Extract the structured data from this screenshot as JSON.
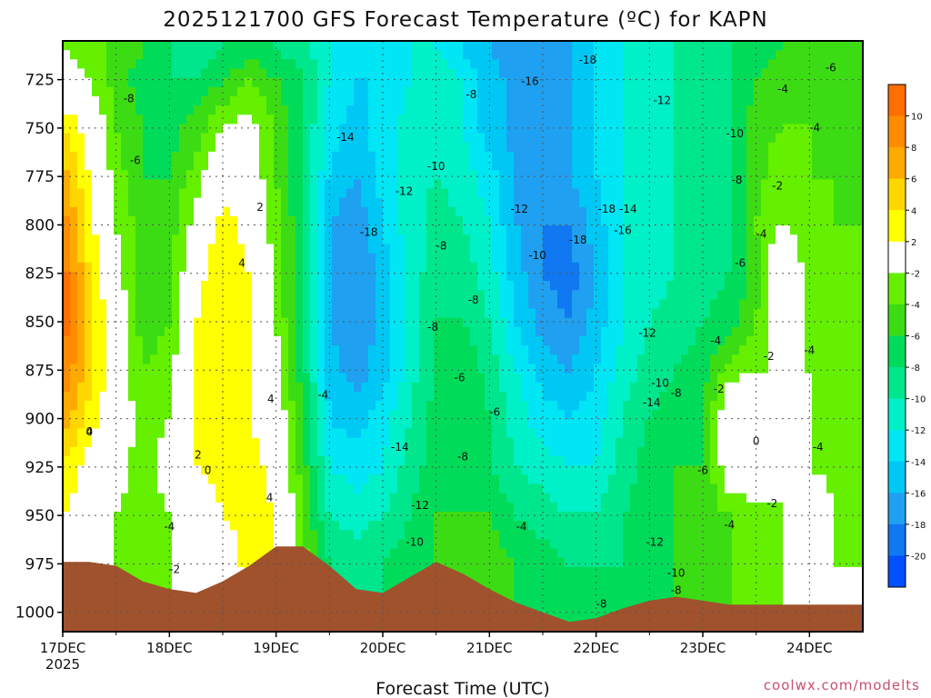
{
  "chart_data": {
    "type": "heatmap",
    "title": "2025121700 GFS Forecast Temperature (ºC) for KAPN",
    "xlabel": "Forecast Time (UTC)",
    "ylabel": "",
    "credit": "coolwx.com/modelts",
    "x_ticks": [
      "17DEC",
      "18DEC",
      "19DEC",
      "20DEC",
      "21DEC",
      "22DEC",
      "23DEC",
      "24DEC"
    ],
    "x_year": "2025",
    "xlim_days": [
      0,
      7.5
    ],
    "y_ticks": [
      725,
      750,
      775,
      800,
      825,
      850,
      875,
      900,
      925,
      950,
      975,
      1000
    ],
    "ylim": [
      705,
      1010
    ],
    "y_axis": "pressure (hPa), inverted",
    "grid": true,
    "colorbar": {
      "boundaries": [
        -22,
        -20,
        -18,
        -16,
        -14,
        -12,
        -10,
        -8,
        -6,
        -4,
        -2,
        2,
        4,
        6,
        8,
        10,
        12
      ],
      "labels": [
        -20,
        -18,
        -16,
        -14,
        -12,
        -10,
        -8,
        -6,
        -4,
        -2,
        2,
        4,
        6,
        8,
        10
      ],
      "colors": [
        "#0050ff",
        "#1078f0",
        "#20a0f0",
        "#00c8f5",
        "#00e6f5",
        "#00f0c8",
        "#00e68c",
        "#00dc5a",
        "#3cdc14",
        "#64f000",
        "#ffffff",
        "#ffff00",
        "#ffd700",
        "#ffaa00",
        "#ff8c00",
        "#ff6e00"
      ]
    },
    "times_days": [
      0,
      0.25,
      0.5,
      0.75,
      1,
      1.25,
      1.5,
      1.75,
      2,
      2.25,
      2.5,
      2.75,
      3,
      3.25,
      3.5,
      3.75,
      4,
      4.25,
      4.5,
      4.75,
      5,
      5.25,
      5.5,
      5.75,
      6,
      6.25,
      6.5,
      6.75,
      7,
      7.25,
      7.5
    ],
    "levels_hpa": [
      710,
      725,
      750,
      775,
      800,
      825,
      850,
      875,
      900,
      925,
      950,
      975,
      1000
    ],
    "surface_pressure_hpa": [
      974,
      974,
      976,
      984,
      988,
      990,
      984,
      976,
      966,
      966,
      976,
      988,
      990,
      982,
      974,
      980,
      988,
      995,
      1000,
      1005,
      1003,
      998,
      994,
      992,
      994,
      996,
      996,
      996,
      996,
      996,
      996
    ],
    "temperature_c": [
      [
        -2,
        -3,
        -5,
        -6,
        -8,
        -9,
        -8,
        -7,
        -8,
        -9,
        -12,
        -14,
        -14,
        -12,
        -12,
        -14,
        -16,
        -18,
        -18,
        -16,
        -14,
        -12,
        -11,
        -10,
        -9,
        -8,
        -7,
        -6,
        -6,
        -6,
        -6
      ],
      [
        -1,
        -2,
        -5,
        -7,
        -8,
        -8,
        -6,
        -4,
        -6,
        -8,
        -12,
        -14,
        -14,
        -12,
        -10,
        -12,
        -15,
        -17,
        -18,
        -16,
        -14,
        -12,
        -11,
        -10,
        -9,
        -8,
        -6,
        -5,
        -5,
        -6,
        -6
      ],
      [
        4,
        1,
        -4,
        -6,
        -7,
        -5,
        -2,
        -1,
        -4,
        -8,
        -13,
        -15,
        -13,
        -11,
        -10,
        -12,
        -15,
        -17,
        -17,
        -16,
        -14,
        -12,
        -11,
        -10,
        -9,
        -8,
        -5,
        -4,
        -4,
        -5,
        -5
      ],
      [
        7,
        2,
        -3,
        -6,
        -6,
        -3,
        1,
        0,
        -4,
        -8,
        -14,
        -16,
        -13,
        -11,
        -10,
        -11,
        -13,
        -16,
        -17,
        -16,
        -14,
        -12,
        -11,
        -10,
        -9,
        -8,
        -5,
        -2,
        -4,
        -4,
        -5
      ],
      [
        9,
        3,
        -2,
        -5,
        -5,
        -1,
        3,
        1,
        -3,
        -8,
        -16,
        -18,
        -14,
        -11,
        -9,
        -10,
        -12,
        -16,
        -18,
        -18,
        -15,
        -12,
        -11,
        -10,
        -9,
        -8,
        -4,
        -2,
        -4,
        -4,
        -4
      ],
      [
        11,
        4,
        -1,
        -5,
        -5,
        1,
        4,
        2,
        -3,
        -8,
        -16,
        -18,
        -15,
        -11,
        -9,
        -9,
        -11,
        -15,
        -18,
        -19,
        -16,
        -12,
        -11,
        -10,
        -9,
        -8,
        -5,
        2,
        -3,
        -4,
        -4
      ],
      [
        11,
        5,
        0,
        -5,
        -4,
        2,
        4,
        2,
        -2,
        -8,
        -16,
        -18,
        -15,
        -11,
        -8,
        -8,
        -10,
        -14,
        -17,
        -18,
        -15,
        -12,
        -10,
        -9,
        -8,
        -7,
        -4,
        2,
        -3,
        -4,
        -4
      ],
      [
        10,
        5,
        0,
        -4,
        -3,
        3,
        4,
        2,
        -1,
        -7,
        -15,
        -17,
        -15,
        -11,
        -8,
        -6,
        -9,
        -12,
        -15,
        -16,
        -14,
        -11,
        -9,
        -8,
        -7,
        -3,
        -2,
        -2,
        -2,
        -3,
        -4
      ],
      [
        7,
        3,
        0,
        -3,
        -2,
        3,
        4,
        2,
        0,
        -6,
        -14,
        -15,
        -13,
        -10,
        -7,
        -6,
        -8,
        -11,
        -13,
        -14,
        -13,
        -10,
        -8,
        -7,
        -6,
        1,
        1,
        -2,
        -2,
        -3,
        -4
      ],
      [
        4,
        1,
        -1,
        -3,
        -1,
        2,
        3,
        3,
        1,
        -5,
        -12,
        -13,
        -12,
        -9,
        -7,
        -7,
        -8,
        -10,
        -11,
        -12,
        -12,
        -9,
        -7,
        -6,
        -6,
        0,
        1,
        -2,
        -2,
        -3,
        -4
      ],
      [
        2,
        0,
        -2,
        -3,
        -2,
        0,
        2,
        3,
        2,
        -4,
        -10,
        -11,
        -10,
        -8,
        -6,
        -6,
        -6,
        -8,
        -9,
        -10,
        -10,
        -8,
        -7,
        -6,
        -5,
        -4,
        -3,
        -2,
        1,
        -2,
        -3
      ],
      [
        2,
        0,
        -2,
        -3,
        -2,
        -1,
        0,
        3,
        2,
        -3,
        -8,
        -9,
        -8,
        -7,
        -6,
        -5,
        -5,
        -6,
        -7,
        -8,
        -8,
        -8,
        -7,
        -6,
        -5,
        -4,
        -3,
        -2,
        1,
        -2,
        -2
      ],
      [
        2,
        0,
        -2,
        -3,
        -2,
        -1,
        0,
        2,
        2,
        -3,
        -8,
        -9,
        -8,
        -7,
        -6,
        -5,
        -5,
        -6,
        -7,
        -8,
        -8,
        -8,
        -7,
        -6,
        -5,
        -4,
        -3,
        -2,
        1,
        -2,
        -2
      ]
    ],
    "contour_labels": [
      {
        "t": 0.25,
        "p": 907,
        "text": "4"
      },
      {
        "t": 0.25,
        "p": 907,
        "text": "0"
      },
      {
        "t": 0.62,
        "p": 735,
        "text": "-8"
      },
      {
        "t": 0.68,
        "p": 767,
        "text": "-6"
      },
      {
        "t": 1.0,
        "p": 956,
        "text": "-4"
      },
      {
        "t": 1.05,
        "p": 978,
        "text": "-2"
      },
      {
        "t": 1.27,
        "p": 919,
        "text": "2"
      },
      {
        "t": 1.36,
        "p": 927,
        "text": "0"
      },
      {
        "t": 1.68,
        "p": 820,
        "text": "4"
      },
      {
        "t": 1.85,
        "p": 791,
        "text": "2"
      },
      {
        "t": 1.95,
        "p": 890,
        "text": "4"
      },
      {
        "t": 1.94,
        "p": 941,
        "text": "4"
      },
      {
        "t": 2.44,
        "p": 888,
        "text": "-4"
      },
      {
        "t": 2.65,
        "p": 755,
        "text": "-14"
      },
      {
        "t": 2.87,
        "p": 804,
        "text": "-18"
      },
      {
        "t": 3.16,
        "p": 915,
        "text": "-14"
      },
      {
        "t": 3.2,
        "p": 783,
        "text": "-12"
      },
      {
        "t": 3.5,
        "p": 770,
        "text": "-10"
      },
      {
        "t": 3.35,
        "p": 945,
        "text": "-12"
      },
      {
        "t": 3.3,
        "p": 964,
        "text": "-10"
      },
      {
        "t": 3.55,
        "p": 811,
        "text": "-8"
      },
      {
        "t": 3.47,
        "p": 853,
        "text": "-8"
      },
      {
        "t": 3.72,
        "p": 879,
        "text": "-6"
      },
      {
        "t": 3.83,
        "p": 733,
        "text": "-8"
      },
      {
        "t": 3.85,
        "p": 839,
        "text": "-8"
      },
      {
        "t": 3.75,
        "p": 920,
        "text": "-8"
      },
      {
        "t": 4.05,
        "p": 897,
        "text": "-6"
      },
      {
        "t": 4.3,
        "p": 956,
        "text": "-4"
      },
      {
        "t": 4.28,
        "p": 792,
        "text": "-12"
      },
      {
        "t": 4.45,
        "p": 816,
        "text": "-10"
      },
      {
        "t": 4.38,
        "p": 726,
        "text": "-16"
      },
      {
        "t": 4.92,
        "p": 715,
        "text": "-18"
      },
      {
        "t": 4.83,
        "p": 808,
        "text": "-18"
      },
      {
        "t": 5.1,
        "p": 792,
        "text": "-18"
      },
      {
        "t": 5.3,
        "p": 792,
        "text": "-14"
      },
      {
        "t": 5.25,
        "p": 803,
        "text": "-16"
      },
      {
        "t": 5.48,
        "p": 856,
        "text": "-12"
      },
      {
        "t": 5.62,
        "p": 736,
        "text": "-12"
      },
      {
        "t": 5.6,
        "p": 882,
        "text": "-10"
      },
      {
        "t": 5.52,
        "p": 892,
        "text": "-14"
      },
      {
        "t": 5.75,
        "p": 887,
        "text": "-8"
      },
      {
        "t": 5.55,
        "p": 964,
        "text": "-12"
      },
      {
        "t": 5.75,
        "p": 980,
        "text": "-10"
      },
      {
        "t": 5.75,
        "p": 989,
        "text": "-8"
      },
      {
        "t": 5.05,
        "p": 996,
        "text": "-8"
      },
      {
        "t": 6.0,
        "p": 927,
        "text": "-6"
      },
      {
        "t": 6.25,
        "p": 955,
        "text": "-4"
      },
      {
        "t": 6.15,
        "p": 885,
        "text": "-2"
      },
      {
        "t": 6.12,
        "p": 860,
        "text": "-4"
      },
      {
        "t": 6.3,
        "p": 753,
        "text": "-10"
      },
      {
        "t": 6.35,
        "p": 820,
        "text": "-6"
      },
      {
        "t": 6.32,
        "p": 777,
        "text": "-8"
      },
      {
        "t": 6.55,
        "p": 805,
        "text": "-4"
      },
      {
        "t": 6.7,
        "p": 780,
        "text": "-2"
      },
      {
        "t": 6.5,
        "p": 912,
        "text": "0"
      },
      {
        "t": 6.62,
        "p": 868,
        "text": "-2"
      },
      {
        "t": 6.65,
        "p": 944,
        "text": "-2"
      },
      {
        "t": 6.75,
        "p": 730,
        "text": "-4"
      },
      {
        "t": 7.05,
        "p": 750,
        "text": "-4"
      },
      {
        "t": 7.0,
        "p": 865,
        "text": "-4"
      },
      {
        "t": 7.08,
        "p": 915,
        "text": "-4"
      },
      {
        "t": 7.2,
        "p": 719,
        "text": "-6"
      }
    ]
  }
}
